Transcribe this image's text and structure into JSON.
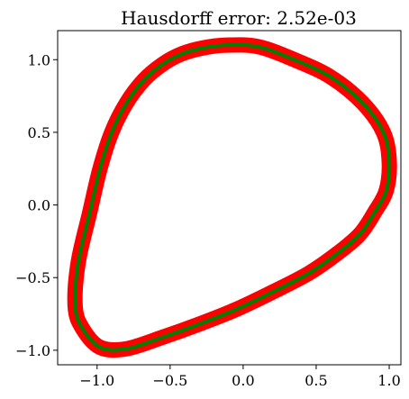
{
  "chart_data": {
    "type": "line",
    "title": "Hausdorff error: 2.52e-03",
    "xlabel": "",
    "ylabel": "",
    "xlim": [
      -1.27,
      1.08
    ],
    "ylim": [
      -1.1,
      1.2
    ],
    "grid": false,
    "aspect": "equal",
    "x_ticks": [
      {
        "value": -1.0,
        "label": "−1.0"
      },
      {
        "value": -0.5,
        "label": "−0.5"
      },
      {
        "value": 0.0,
        "label": "0.0"
      },
      {
        "value": 0.5,
        "label": "0.5"
      },
      {
        "value": 1.0,
        "label": "1.0"
      }
    ],
    "y_ticks": [
      {
        "value": 1.0,
        "label": "1.0"
      },
      {
        "value": 0.5,
        "label": "0.5"
      },
      {
        "value": 0.0,
        "label": "0.0"
      },
      {
        "value": -0.5,
        "label": "−0.5"
      },
      {
        "value": -1.0,
        "label": "−1.0"
      }
    ],
    "series": [
      {
        "role": "thick-band",
        "color": "#ff0000",
        "closed": true,
        "x": [
          -0.12,
          0.1,
          0.35,
          0.6,
          0.82,
          0.96,
          1.0,
          0.98,
          0.9,
          0.8,
          0.65,
          0.45,
          0.2,
          -0.05,
          -0.3,
          -0.55,
          -0.8,
          -0.98,
          -1.1,
          -1.15,
          -1.13,
          -1.05,
          -0.98,
          -0.9,
          -0.8,
          -0.68,
          -0.55,
          -0.42,
          -0.28,
          -0.12
        ],
        "y": [
          1.1,
          1.09,
          1.0,
          0.88,
          0.7,
          0.5,
          0.3,
          0.1,
          -0.05,
          -0.2,
          -0.33,
          -0.47,
          -0.6,
          -0.72,
          -0.82,
          -0.91,
          -0.99,
          -0.98,
          -0.85,
          -0.7,
          -0.4,
          -0.05,
          0.25,
          0.5,
          0.7,
          0.86,
          0.97,
          1.04,
          1.08,
          1.1
        ]
      },
      {
        "role": "center-line",
        "color": "#008000",
        "closed": true,
        "x": [
          -0.12,
          0.1,
          0.35,
          0.6,
          0.82,
          0.96,
          1.0,
          0.98,
          0.9,
          0.8,
          0.65,
          0.45,
          0.2,
          -0.05,
          -0.3,
          -0.55,
          -0.8,
          -0.98,
          -1.1,
          -1.15,
          -1.13,
          -1.05,
          -0.98,
          -0.9,
          -0.8,
          -0.68,
          -0.55,
          -0.42,
          -0.28,
          -0.12
        ],
        "y": [
          1.1,
          1.09,
          1.0,
          0.88,
          0.7,
          0.5,
          0.3,
          0.1,
          -0.05,
          -0.2,
          -0.33,
          -0.47,
          -0.6,
          -0.72,
          -0.82,
          -0.91,
          -0.99,
          -0.98,
          -0.85,
          -0.7,
          -0.4,
          -0.05,
          0.25,
          0.5,
          0.7,
          0.86,
          0.97,
          1.04,
          1.08,
          1.1
        ]
      }
    ]
  }
}
